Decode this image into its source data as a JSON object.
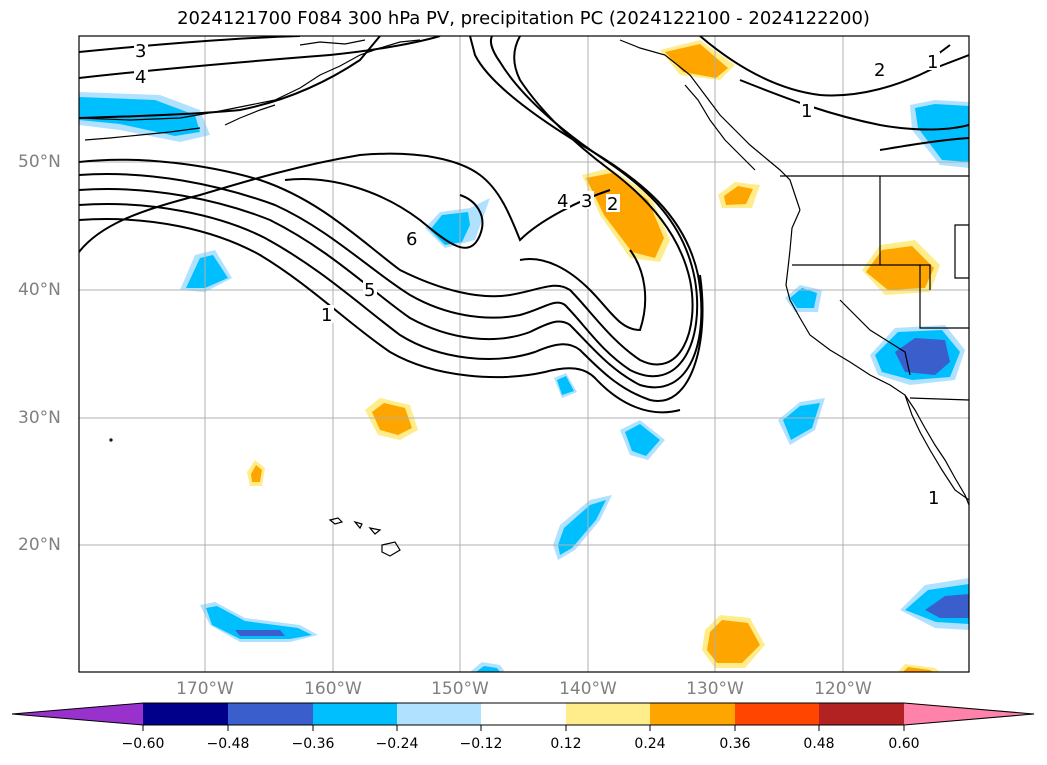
{
  "title": "2024121700 F084 300 hPa PV, precipitation PC (2024122100 - 2024122200)",
  "map": {
    "lat_ticks": [
      "50°N",
      "40°N",
      "30°N",
      "20°N"
    ],
    "lon_ticks": [
      "170°W",
      "160°W",
      "150°W",
      "140°W",
      "130°W",
      "120°W"
    ],
    "pv_contour_labels": [
      "3",
      "4",
      "6",
      "5",
      "1",
      "4",
      "3",
      "2",
      "2",
      "1",
      "1",
      "1"
    ]
  },
  "colorbar": {
    "labels": [
      "−0.60",
      "−0.48",
      "−0.36",
      "−0.24",
      "−0.12",
      "0.12",
      "0.24",
      "0.36",
      "0.48",
      "0.60"
    ],
    "colors": [
      "#9932CC",
      "#00008B",
      "#3A5FCD",
      "#00BFFF",
      "#B0E2FF",
      "#FFFFFF",
      "#FFEC8B",
      "#FFA500",
      "#FF4500",
      "#B22222",
      "#FF82AB"
    ]
  }
}
